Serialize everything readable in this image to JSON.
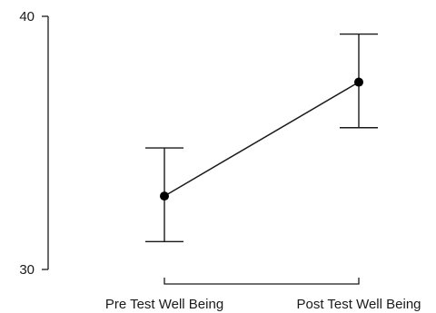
{
  "chart_data": {
    "type": "line",
    "categories": [
      "Pre Test Well Being",
      "Post Test Well Being"
    ],
    "series": [
      {
        "values": [
          32.9,
          37.4
        ],
        "error_lower": [
          31.1,
          35.6
        ],
        "error_upper": [
          34.8,
          39.3
        ]
      }
    ],
    "ylim": [
      30,
      40
    ],
    "yticks": [
      "30",
      "40"
    ],
    "grid": false,
    "legend": "none"
  }
}
